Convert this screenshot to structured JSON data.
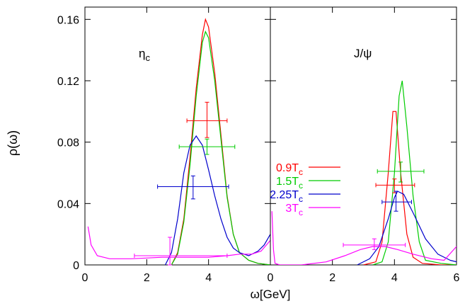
{
  "chart_data": {
    "type": "line",
    "ylabel": "ρ(ω)",
    "xlabel": "ω[GeV]",
    "ylim": [
      0,
      0.168
    ],
    "yticks": [
      "0",
      "0.04",
      "0.08",
      "0.12",
      "0.16"
    ],
    "ytick_values": [
      0,
      0.04,
      0.08,
      0.12,
      0.16
    ],
    "legend_placement": "center",
    "colors": {
      "0.9Tc": "#ff0000",
      "1.5Tc": "#00cc00",
      "2.25Tc": "#0000cc",
      "3Tc": "#ff00ff",
      "axis": "#000000"
    },
    "legend": [
      {
        "key": "0.9Tc",
        "base": "0.9T",
        "sub": "c"
      },
      {
        "key": "1.5Tc",
        "base": "1.5T",
        "sub": "c"
      },
      {
        "key": "2.25Tc",
        "base": "2.25T",
        "sub": "c"
      },
      {
        "key": "3Tc",
        "base": "3T",
        "sub": "c"
      }
    ],
    "panels": [
      {
        "label_base": "η",
        "label_sub": "c",
        "xlim": [
          0,
          6
        ],
        "xticks": [
          "0",
          "2",
          "4"
        ],
        "xtick_values": [
          0,
          2,
          4
        ],
        "series": [
          {
            "key": "0.9Tc",
            "points": [
              [
                2.8,
                0
              ],
              [
                3.0,
                0.008
              ],
              [
                3.2,
                0.03
              ],
              [
                3.4,
                0.07
              ],
              [
                3.6,
                0.115
              ],
              [
                3.8,
                0.15
              ],
              [
                3.9,
                0.16
              ],
              [
                4.0,
                0.155
              ],
              [
                4.2,
                0.125
              ],
              [
                4.4,
                0.085
              ],
              [
                4.6,
                0.045
              ],
              [
                4.8,
                0.02
              ],
              [
                5.0,
                0.008
              ],
              [
                5.3,
                0.003
              ],
              [
                5.6,
                0.001
              ],
              [
                6.0,
                0
              ]
            ]
          },
          {
            "key": "1.5Tc",
            "points": [
              [
                2.8,
                0
              ],
              [
                3.0,
                0.007
              ],
              [
                3.2,
                0.028
              ],
              [
                3.4,
                0.065
              ],
              [
                3.6,
                0.11
              ],
              [
                3.8,
                0.145
              ],
              [
                3.9,
                0.152
              ],
              [
                4.0,
                0.148
              ],
              [
                4.2,
                0.12
              ],
              [
                4.4,
                0.082
              ],
              [
                4.6,
                0.044
              ],
              [
                4.8,
                0.02
              ],
              [
                5.0,
                0.008
              ],
              [
                5.3,
                0.003
              ],
              [
                5.6,
                0.001
              ],
              [
                6.0,
                0
              ]
            ]
          },
          {
            "key": "2.25Tc",
            "points": [
              [
                2.6,
                0
              ],
              [
                2.8,
                0.008
              ],
              [
                3.0,
                0.03
              ],
              [
                3.2,
                0.06
              ],
              [
                3.4,
                0.078
              ],
              [
                3.6,
                0.084
              ],
              [
                3.8,
                0.078
              ],
              [
                4.0,
                0.062
              ],
              [
                4.2,
                0.045
              ],
              [
                4.4,
                0.03
              ],
              [
                4.6,
                0.018
              ],
              [
                4.8,
                0.011
              ],
              [
                5.0,
                0.008
              ],
              [
                5.3,
                0.006
              ],
              [
                5.6,
                0.009
              ],
              [
                5.8,
                0.013
              ],
              [
                6.0,
                0.02
              ]
            ]
          },
          {
            "key": "3Tc",
            "points": [
              [
                0.1,
                0.025
              ],
              [
                0.2,
                0.013
              ],
              [
                0.4,
                0.006
              ],
              [
                0.8,
                0.004
              ],
              [
                1.5,
                0.004
              ],
              [
                2.5,
                0.005
              ],
              [
                3.2,
                0.005
              ],
              [
                4.0,
                0.005
              ],
              [
                4.6,
                0.006
              ],
              [
                5.0,
                0.007
              ],
              [
                5.4,
                0.007
              ],
              [
                5.7,
                0.009
              ],
              [
                6.0,
                0.016
              ]
            ]
          }
        ],
        "errorbars": [
          {
            "key": "0.9Tc",
            "x": 3.95,
            "y": 0.094,
            "xmin": 3.3,
            "xmax": 4.6,
            "ymin": 0.083,
            "ymax": 0.106
          },
          {
            "key": "1.5Tc",
            "x": 3.95,
            "y": 0.077,
            "xmin": 3.05,
            "xmax": 4.85,
            "ymin": 0.072,
            "ymax": 0.082
          },
          {
            "key": "2.25Tc",
            "x": 3.5,
            "y": 0.051,
            "xmin": 2.35,
            "xmax": 4.65,
            "ymin": 0.043,
            "ymax": 0.058
          },
          {
            "key": "3Tc",
            "x": 2.75,
            "y": 0.006,
            "xmin": 1.6,
            "xmax": 4.6,
            "ymin": 0.0,
            "ymax": 0.018
          }
        ]
      },
      {
        "label_base": "J/ψ",
        "label_sub": "",
        "xlim": [
          0,
          6
        ],
        "xticks": [
          "0",
          "2",
          "4",
          "6"
        ],
        "xtick_values": [
          0,
          2,
          4,
          6
        ],
        "series": [
          {
            "key": "0.9Tc",
            "points": [
              [
                3.0,
                0
              ],
              [
                3.4,
                0.002
              ],
              [
                3.6,
                0.015
              ],
              [
                3.8,
                0.06
              ],
              [
                3.95,
                0.1
              ],
              [
                4.05,
                0.1
              ],
              [
                4.2,
                0.06
              ],
              [
                4.4,
                0.02
              ],
              [
                4.6,
                0.005
              ],
              [
                4.9,
                0.001
              ],
              [
                5.5,
                0
              ],
              [
                6.0,
                0
              ]
            ]
          },
          {
            "key": "1.5Tc",
            "points": [
              [
                3.3,
                0
              ],
              [
                3.6,
                0.002
              ],
              [
                3.8,
                0.015
              ],
              [
                4.0,
                0.06
              ],
              [
                4.15,
                0.11
              ],
              [
                4.25,
                0.12
              ],
              [
                4.4,
                0.09
              ],
              [
                4.6,
                0.045
              ],
              [
                4.8,
                0.015
              ],
              [
                5.0,
                0.003
              ],
              [
                5.5,
                0.001
              ],
              [
                6.0,
                0
              ]
            ]
          },
          {
            "key": "2.25Tc",
            "points": [
              [
                2.8,
                0
              ],
              [
                3.2,
                0.004
              ],
              [
                3.5,
                0.012
              ],
              [
                3.8,
                0.03
              ],
              [
                4.0,
                0.044
              ],
              [
                4.1,
                0.048
              ],
              [
                4.3,
                0.046
              ],
              [
                4.6,
                0.034
              ],
              [
                5.0,
                0.017
              ],
              [
                5.4,
                0.007
              ],
              [
                5.8,
                0.003
              ],
              [
                6.0,
                0.002
              ]
            ]
          },
          {
            "key": "3Tc",
            "points": [
              [
                0.05,
                0.035
              ],
              [
                0.1,
                0.01
              ],
              [
                0.15,
                0.001
              ],
              [
                0.3,
                0
              ],
              [
                1.0,
                0
              ],
              [
                1.8,
                0.002
              ],
              [
                2.4,
                0.006
              ],
              [
                2.9,
                0.01
              ],
              [
                3.3,
                0.012
              ],
              [
                3.7,
                0.012
              ],
              [
                4.1,
                0.01
              ],
              [
                4.6,
                0.007
              ],
              [
                5.2,
                0.004
              ],
              [
                5.6,
                0.003
              ],
              [
                6.0,
                0.012
              ]
            ]
          }
        ],
        "errorbars": [
          {
            "key": "0.9Tc",
            "x": 4.0,
            "y": 0.052,
            "xmin": 3.4,
            "xmax": 4.65,
            "ymin": 0.047,
            "ymax": 0.056
          },
          {
            "key": "1.5Tc",
            "x": 4.2,
            "y": 0.061,
            "xmin": 3.45,
            "xmax": 4.95,
            "ymin": 0.054,
            "ymax": 0.067
          },
          {
            "key": "2.25Tc",
            "x": 4.05,
            "y": 0.041,
            "xmin": 3.6,
            "xmax": 4.55,
            "ymin": 0.035,
            "ymax": 0.048
          },
          {
            "key": "3Tc",
            "x": 3.35,
            "y": 0.013,
            "xmin": 2.35,
            "xmax": 4.35,
            "ymin": 0.01,
            "ymax": 0.017
          }
        ]
      }
    ]
  }
}
